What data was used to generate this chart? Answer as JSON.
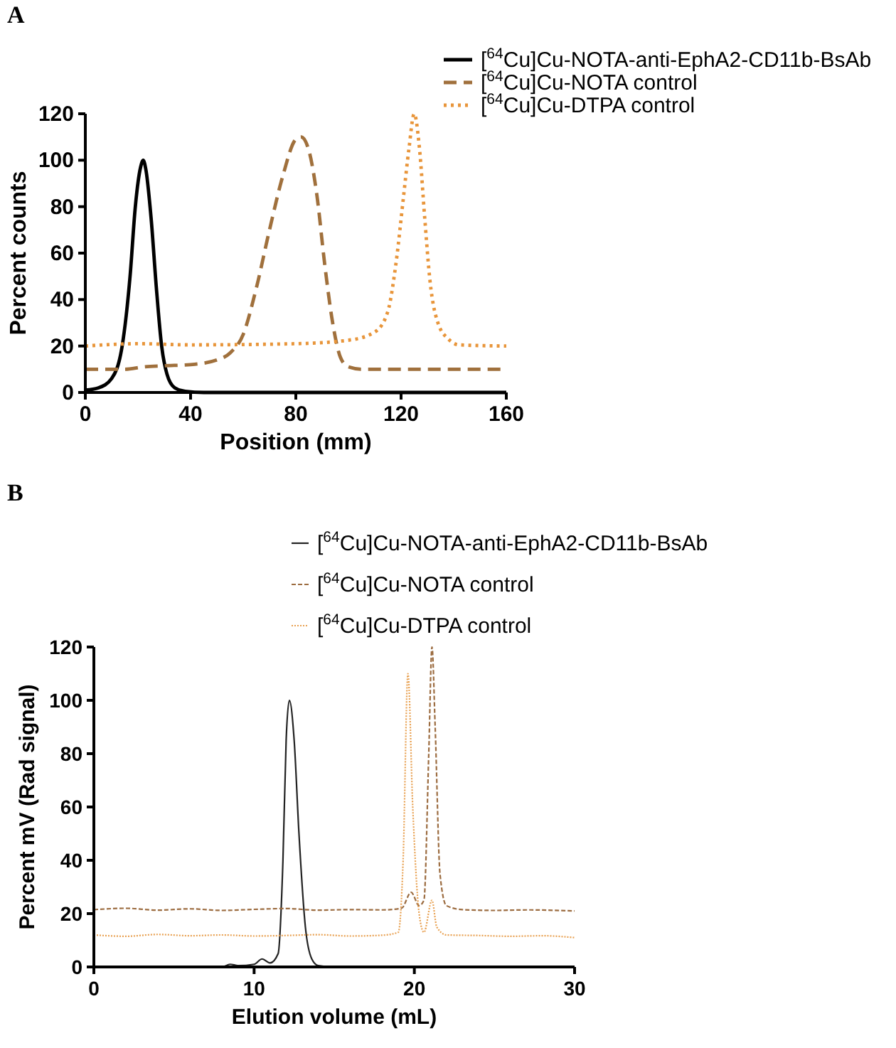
{
  "chart_data": [
    {
      "type": "line",
      "title": "A",
      "xlabel": "Position (mm)",
      "ylabel": "Percent counts",
      "xlim": [
        0,
        160
      ],
      "xticks": [
        0,
        40,
        80,
        120,
        160
      ],
      "ylim": [
        0,
        120
      ],
      "yticks": [
        0,
        20,
        40,
        60,
        80,
        100,
        120
      ],
      "grid": false,
      "legend": "top right",
      "series": [
        {
          "name": "[$^{64}$Cu]Cu-NOTA-anti-EphA2-CD11b-BsAb",
          "color": "#000000",
          "line_style": "solid",
          "x": [
            0,
            5,
            10,
            14,
            17,
            19,
            21,
            22,
            23,
            25,
            27,
            29,
            31,
            34,
            38,
            45,
            160
          ],
          "values": [
            1,
            2,
            6,
            20,
            50,
            80,
            97,
            100,
            96,
            75,
            45,
            20,
            8,
            2,
            0.5,
            0,
            0
          ]
        },
        {
          "name": "[$^{64}$Cu]Cu-NOTA control",
          "color": "#a0703c",
          "line_style": "dashed",
          "x": [
            0,
            15,
            22,
            30,
            40,
            50,
            55,
            60,
            65,
            70,
            75,
            80,
            82,
            85,
            88,
            91,
            94,
            97,
            100,
            105,
            160
          ],
          "values": [
            10,
            10,
            11,
            11.5,
            12,
            14,
            17,
            25,
            45,
            70,
            93,
            109,
            110,
            104,
            85,
            55,
            30,
            15,
            11,
            10,
            10
          ]
        },
        {
          "name": "[$^{64}$Cu]Cu-DTPA control",
          "color": "#e8953a",
          "line_style": "dotted",
          "x": [
            0,
            20,
            40,
            80,
            100,
            110,
            115,
            118,
            121,
            123,
            125,
            127,
            129,
            131,
            134,
            138,
            142,
            160
          ],
          "values": [
            20,
            21,
            20.5,
            21,
            22.5,
            26,
            35,
            55,
            85,
            105,
            120,
            105,
            75,
            48,
            30,
            23,
            20.5,
            20
          ]
        }
      ]
    },
    {
      "type": "line",
      "title": "B",
      "xlabel": "Elution volume (mL)",
      "ylabel": "Percent mV (Rad signal)",
      "xlim": [
        0,
        30
      ],
      "xticks": [
        0,
        10,
        20,
        30
      ],
      "ylim": [
        0,
        120
      ],
      "yticks": [
        0,
        20,
        40,
        60,
        80,
        100,
        120
      ],
      "grid": false,
      "legend": "top right",
      "series": [
        {
          "name": "[$^{64}$Cu]Cu-NOTA-anti-EphA2-CD11b-BsAb",
          "color": "#222222",
          "line_style": "solid",
          "x": [
            0,
            8,
            8.5,
            9,
            10,
            10.5,
            11,
            11.5,
            11.8,
            12,
            12.2,
            12.5,
            12.8,
            13.2,
            13.6,
            14,
            15,
            30
          ],
          "values": [
            0,
            0,
            1,
            0.5,
            1,
            3,
            1.5,
            5,
            40,
            85,
            100,
            85,
            50,
            15,
            3,
            0.5,
            0,
            0
          ]
        },
        {
          "name": "[$^{64}$Cu]Cu-NOTA control",
          "color": "#9c6c40",
          "line_style": "dashed",
          "x": [
            0,
            2,
            4,
            6,
            8,
            10,
            12,
            14,
            16,
            18,
            19.2,
            19.8,
            20.3,
            20.6,
            20.9,
            21.1,
            21.3,
            21.6,
            22,
            23,
            25,
            27,
            30
          ],
          "values": [
            21.5,
            22,
            21.3,
            21.8,
            21.2,
            21.6,
            21.9,
            21.3,
            21.5,
            21.4,
            22,
            28,
            23,
            25,
            80,
            120,
            90,
            35,
            23,
            21.5,
            21.2,
            21.4,
            21
          ]
        },
        {
          "name": "[$^{64}$Cu]Cu-DTPA control",
          "color": "#e8a050",
          "line_style": "dotted",
          "x": [
            0,
            2,
            4,
            6,
            8,
            10,
            12,
            14,
            16,
            18,
            19,
            19.3,
            19.6,
            19.9,
            20.3,
            20.6,
            21.1,
            21.4,
            22,
            24,
            26,
            28,
            30
          ],
          "values": [
            12,
            11.5,
            12.2,
            11.7,
            12,
            11.6,
            11.8,
            12.1,
            11.6,
            11.9,
            13,
            40,
            110,
            60,
            20,
            13,
            25,
            15,
            12,
            11.8,
            11.5,
            11.7,
            11
          ]
        }
      ]
    }
  ]
}
